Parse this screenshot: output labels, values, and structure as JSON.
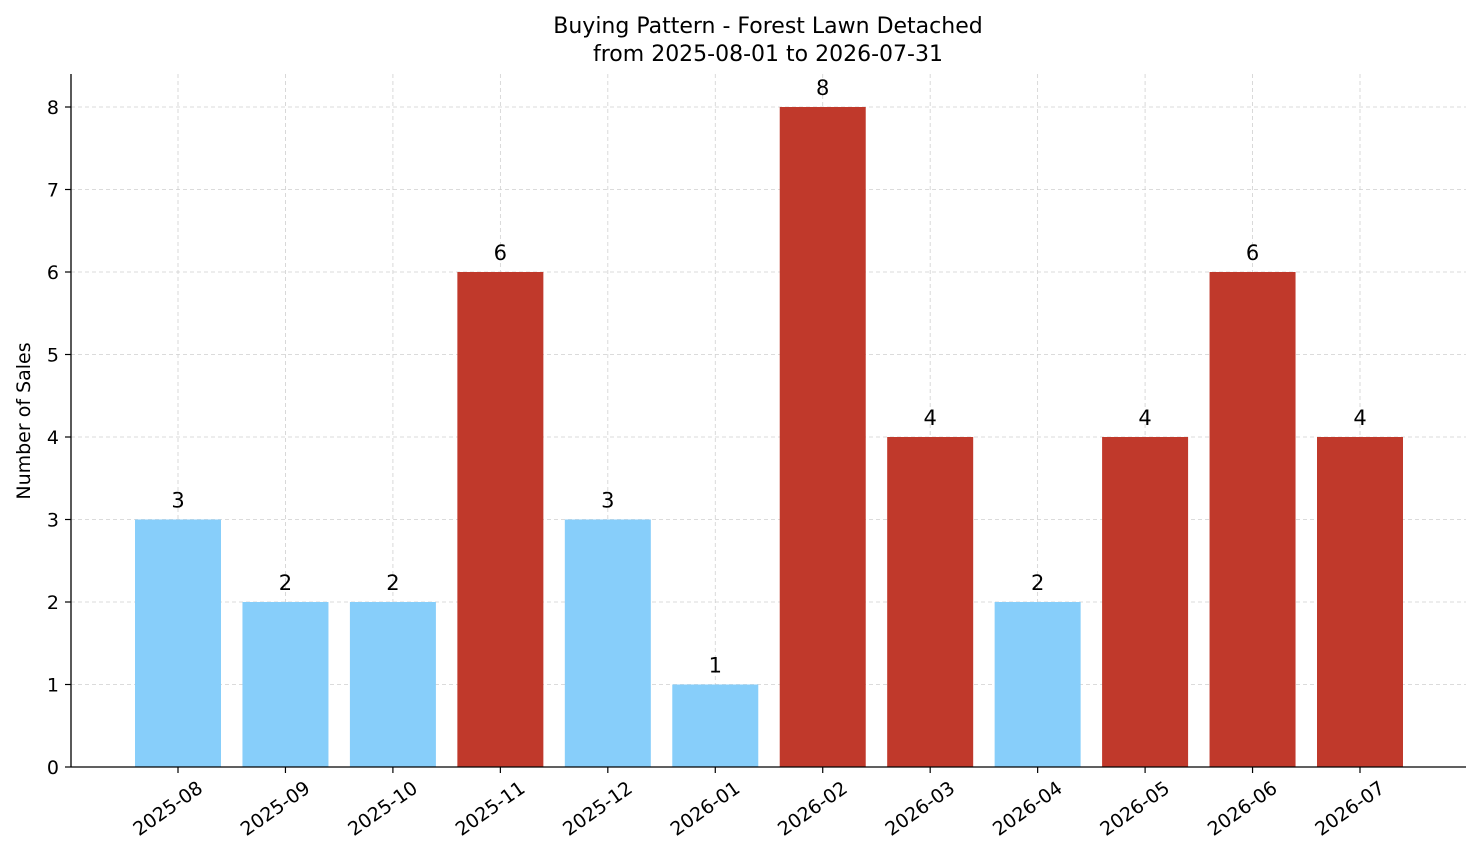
{
  "chart_data": {
    "type": "bar",
    "title_line1": "Buying Pattern - Forest Lawn Detached",
    "title_line2": "from 2025-08-01 to 2026-07-31",
    "xlabel": "",
    "ylabel": "Number of Sales",
    "categories": [
      "2025-08",
      "2025-09",
      "2025-10",
      "2025-11",
      "2025-12",
      "2026-01",
      "2026-02",
      "2026-03",
      "2026-04",
      "2026-05",
      "2026-06",
      "2026-07"
    ],
    "values": [
      3,
      2,
      2,
      6,
      3,
      1,
      8,
      4,
      2,
      4,
      6,
      4
    ],
    "bar_colors": [
      "#87cefa",
      "#87cefa",
      "#87cefa",
      "#c0392b",
      "#87cefa",
      "#87cefa",
      "#c0392b",
      "#c0392b",
      "#87cefa",
      "#c0392b",
      "#c0392b",
      "#c0392b"
    ],
    "ylim": [
      0,
      8.4
    ],
    "yticks": [
      0,
      1,
      2,
      3,
      4,
      5,
      6,
      7,
      8
    ],
    "grid": true,
    "data_labels": true
  }
}
